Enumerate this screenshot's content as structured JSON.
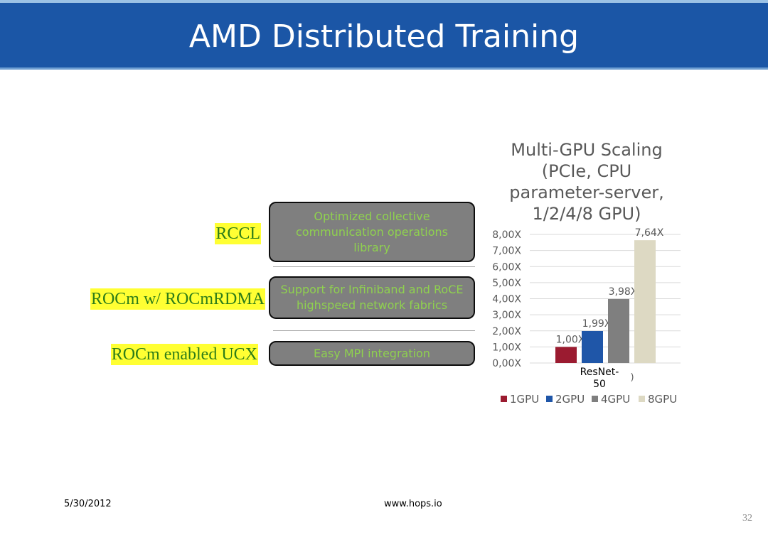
{
  "slide": {
    "title": "AMD Distributed Training",
    "date": "5/30/2012",
    "url": "www.hops.io",
    "page_number": "32"
  },
  "stack": [
    {
      "label": "RCCL",
      "description": "Optimized collective communication operations library"
    },
    {
      "label": "ROCm w/ ROCmRDMA",
      "description": "Support for Infiniband and RoCE highspeed network fabrics"
    },
    {
      "label": "ROCm enabled UCX",
      "description": "Easy MPI integration"
    }
  ],
  "colors": {
    "title_bar": "#1b56a6",
    "highlight": "#ffff33",
    "label_text": "#2e7d18",
    "box_fill": "#7f7f7f",
    "box_text": "#8fd14f"
  },
  "chart_data": {
    "type": "bar",
    "title": "Multi-GPU Scaling (PCIe, CPU parameter-server, 1/2/4/8 GPU)",
    "categories": [
      "ResNet-50"
    ],
    "category_label": "ResNet-\n50",
    "stray_label": ")",
    "series": [
      {
        "name": "1GPU",
        "values": [
          1.0
        ],
        "color": "#9b1b30",
        "label": "1,00X"
      },
      {
        "name": "2GPU",
        "values": [
          1.99
        ],
        "color": "#1f56a8",
        "label": "1,99X"
      },
      {
        "name": "4GPU",
        "values": [
          3.98
        ],
        "color": "#7f7f7f",
        "label": "3,98X"
      },
      {
        "name": "8GPU",
        "values": [
          7.64
        ],
        "color": "#ddd9c3",
        "label": "7,64X"
      }
    ],
    "yticks": [
      {
        "value": 0,
        "label": "0,00X"
      },
      {
        "value": 1,
        "label": "1,00X"
      },
      {
        "value": 2,
        "label": "2,00X"
      },
      {
        "value": 3,
        "label": "3,00X"
      },
      {
        "value": 4,
        "label": "4,00X"
      },
      {
        "value": 5,
        "label": "5,00X"
      },
      {
        "value": 6,
        "label": "6,00X"
      },
      {
        "value": 7,
        "label": "7,00X"
      },
      {
        "value": 8,
        "label": "8,00X"
      }
    ],
    "ylim": [
      0,
      8
    ],
    "grid": true,
    "legend": "bottom"
  }
}
